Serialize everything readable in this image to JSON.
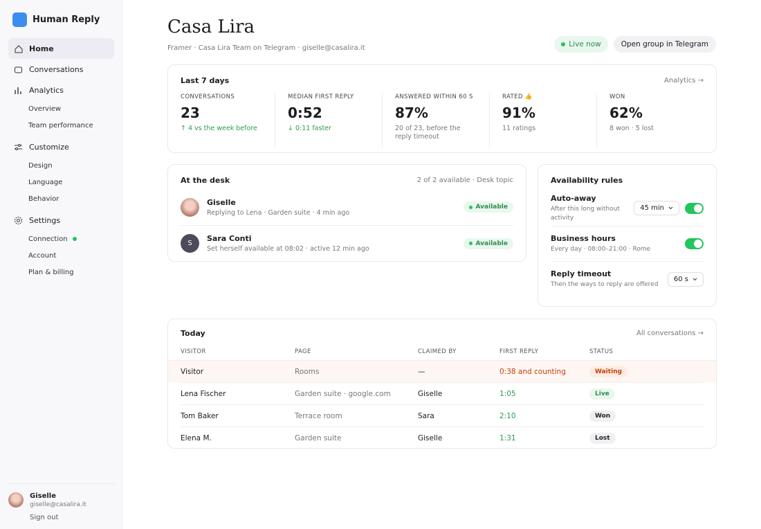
{
  "sidebar": {
    "brand": "Human Reply",
    "nav": [
      {
        "label": "Home",
        "children": []
      },
      {
        "label": "Conversations",
        "children": []
      },
      {
        "label": "Analytics",
        "children": [
          "Overview",
          "Team performance"
        ]
      },
      {
        "label": "Customize",
        "children": [
          "Design",
          "Language",
          "Behavior"
        ]
      },
      {
        "label": "Settings",
        "children": [
          "Connection",
          "Account",
          "Plan & billing"
        ]
      }
    ],
    "user": {
      "name": "Giselle",
      "email": "giselle@casalira.it",
      "sign_out": "Sign out"
    }
  },
  "header": {
    "title": "Casa Lira",
    "subtitle": "Framer · Casa Lira Team on Telegram · giselle@casalira.it",
    "status": "Live now",
    "button": "Open group in Telegram"
  },
  "stats": {
    "title": "Last 7 days",
    "link": "Analytics →",
    "items": [
      {
        "label": "CONVERSATIONS",
        "value": "23",
        "note": "↑ 4 vs the week before"
      },
      {
        "label": "MEDIAN FIRST REPLY",
        "value": "0:52",
        "note": "↓ 0:11 faster"
      },
      {
        "label": "ANSWERED WITHIN 60 S",
        "value": "87%",
        "note": "20 of 23, before the reply timeout"
      },
      {
        "label": "RATED 👍",
        "value": "91%",
        "note": "11 ratings"
      },
      {
        "label": "WON",
        "value": "62%",
        "note": "8 won · 5 lost"
      }
    ]
  },
  "desk": {
    "title": "At the desk",
    "meta": "2 of 2 available · Desk topic",
    "agents": [
      {
        "name": "Giselle",
        "detail": "Replying to Lena · Garden suite · 4 min ago",
        "status": "Available"
      },
      {
        "name": "Sara Conti",
        "initial": "S",
        "detail": "Set herself available at 08:02 · active 12 min ago",
        "status": "Available"
      }
    ]
  },
  "rules": {
    "title": "Availability rules",
    "items": [
      {
        "name": "Auto-away",
        "detail": "After this long without activity",
        "select": "45 min"
      },
      {
        "name": "Business hours",
        "detail": "Every day · 08:00–21:00 · Rome"
      },
      {
        "name": "Reply timeout",
        "detail": "Then the ways to reply are offered",
        "select": "60 s"
      }
    ]
  },
  "today": {
    "title": "Today",
    "link": "All conversations →",
    "columns": [
      "VISITOR",
      "PAGE",
      "CLAIMED BY",
      "FIRST REPLY",
      "STATUS"
    ],
    "rows": [
      [
        "Visitor",
        "Rooms",
        "—",
        "0:38 and counting",
        "Waiting"
      ],
      [
        "Lena Fischer",
        "Garden suite · google.com",
        "Giselle",
        "1:05",
        "Live"
      ],
      [
        "Tom Baker",
        "Terrace room",
        "Sara",
        "2:10",
        "Won"
      ],
      [
        "Elena M.",
        "Garden suite",
        "Giselle",
        "1:31",
        "Lost"
      ]
    ]
  }
}
